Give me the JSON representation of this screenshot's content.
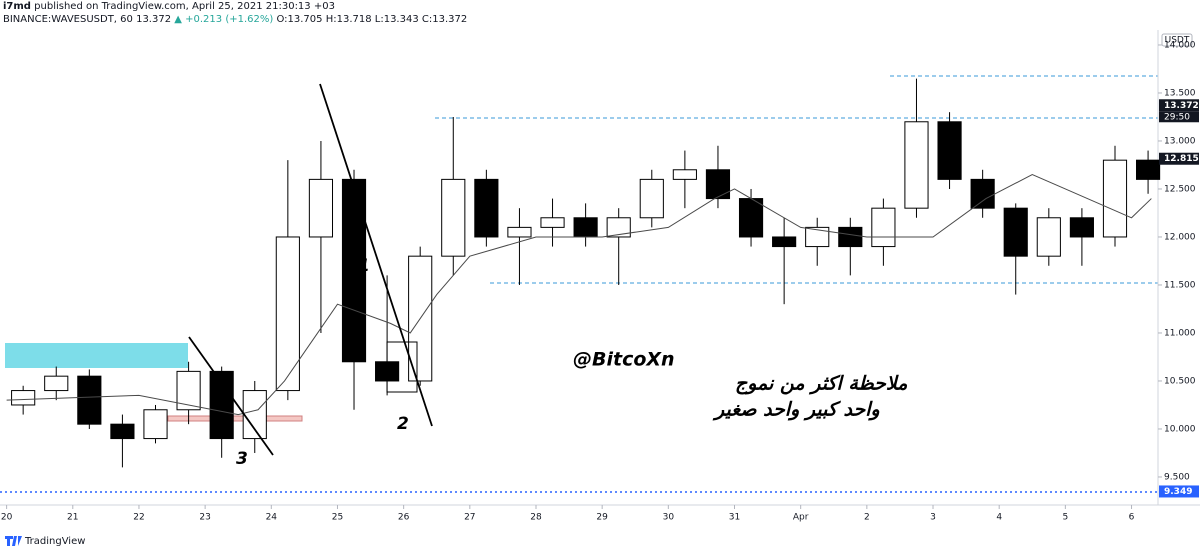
{
  "header": {
    "author": "i7md",
    "published": "published on TradingView.com, April 25, 2021 21:30:13 +03",
    "symbol": "BINANCE:WAVESUSDT, 60",
    "last": "13.372",
    "change": "▲ +0.213 (+1.62%)",
    "ohlc": "O:13.705 H:13.718 L:13.343 C:13.372"
  },
  "footer": {
    "brand": "TradingView"
  },
  "chart_data": {
    "type": "candlestick",
    "currency": "USDT",
    "up_color": "#ffffff",
    "down_color": "#000000",
    "ma_color": "#4a4a4a",
    "xlim": [
      -0.1,
      17.4
    ],
    "xticks": [
      {
        "value": 0,
        "label": "20"
      },
      {
        "value": 1,
        "label": "21"
      },
      {
        "value": 2,
        "label": "22"
      },
      {
        "value": 3,
        "label": "23"
      },
      {
        "value": 4,
        "label": "24"
      },
      {
        "value": 5,
        "label": "25"
      },
      {
        "value": 6,
        "label": "26"
      },
      {
        "value": 7,
        "label": "27"
      },
      {
        "value": 8,
        "label": "28"
      },
      {
        "value": 9,
        "label": "29"
      },
      {
        "value": 10,
        "label": "30"
      },
      {
        "value": 11,
        "label": "31"
      },
      {
        "value": 12,
        "label": "Apr"
      },
      {
        "value": 13,
        "label": "2"
      },
      {
        "value": 14,
        "label": "3"
      },
      {
        "value": 15,
        "label": "4"
      },
      {
        "value": 16,
        "label": "5"
      },
      {
        "value": 17,
        "label": "6"
      }
    ],
    "ylim": [
      9.208,
      14.156
    ],
    "yticks": [
      {
        "value": 9.5,
        "label": "9.500"
      },
      {
        "value": 10,
        "label": "10.000"
      },
      {
        "value": 10.5,
        "label": "10.500"
      },
      {
        "value": 11,
        "label": "11.000"
      },
      {
        "value": 11.5,
        "label": "11.500"
      },
      {
        "value": 12,
        "label": "12.000"
      },
      {
        "value": 12.5,
        "label": "12.500"
      },
      {
        "value": 13,
        "label": "13.000"
      },
      {
        "value": 13.5,
        "label": "13.500"
      },
      {
        "value": 14,
        "label": "14.000"
      }
    ],
    "x": [
      0,
      0.5,
      1,
      1.5,
      2,
      2.5,
      3,
      3.5,
      4,
      4.5,
      5,
      5.5,
      6,
      6.5,
      7,
      7.5,
      8,
      8.5,
      9,
      9.5,
      10,
      10.5,
      11,
      11.5,
      12,
      12.5,
      13,
      13.5,
      14,
      14.5,
      15,
      15.5,
      16,
      16.5,
      17
    ],
    "open": [
      10.25,
      10.4,
      10.55,
      10.05,
      9.9,
      10.2,
      10.6,
      9.9,
      10.4,
      12.0,
      12.6,
      10.7,
      10.5,
      11.8,
      12.6,
      12.0,
      12.1,
      12.2,
      12.0,
      12.2,
      12.6,
      12.7,
      12.4,
      12.0,
      11.9,
      12.1,
      11.9,
      12.3,
      13.2,
      12.6,
      12.3,
      11.8,
      12.2,
      12.0,
      12.8
    ],
    "high": [
      10.45,
      10.65,
      10.62,
      10.15,
      10.25,
      10.7,
      10.65,
      10.5,
      12.8,
      13.0,
      12.7,
      11.6,
      11.9,
      13.25,
      12.7,
      12.3,
      12.4,
      12.35,
      12.3,
      12.7,
      12.9,
      12.95,
      12.5,
      12.2,
      12.2,
      12.2,
      12.4,
      13.65,
      13.3,
      12.7,
      12.35,
      12.3,
      12.3,
      12.95,
      12.9
    ],
    "low": [
      10.15,
      10.3,
      10.0,
      9.6,
      9.85,
      10.05,
      9.7,
      9.75,
      10.3,
      11.0,
      10.2,
      10.35,
      10.45,
      11.6,
      11.9,
      11.5,
      11.9,
      11.9,
      11.5,
      12.1,
      12.3,
      12.3,
      11.9,
      11.3,
      11.7,
      11.6,
      11.7,
      12.2,
      12.5,
      12.2,
      11.4,
      11.7,
      11.7,
      11.9,
      12.45
    ],
    "close": [
      10.4,
      10.55,
      10.05,
      9.9,
      10.2,
      10.6,
      9.9,
      10.4,
      12.0,
      12.6,
      10.7,
      10.5,
      11.8,
      12.6,
      12.0,
      12.1,
      12.2,
      12.0,
      12.2,
      12.6,
      12.7,
      12.4,
      12.0,
      11.9,
      12.1,
      11.9,
      12.3,
      13.2,
      12.6,
      12.3,
      11.8,
      12.2,
      12.0,
      12.8,
      12.6
    ],
    "ma": {
      "x": [
        0,
        2,
        3.5,
        3.8,
        4.2,
        4.6,
        5,
        5.8,
        6.1,
        6.5,
        7,
        8,
        9,
        10,
        10.7,
        11,
        12,
        13,
        14,
        14.8,
        15.5,
        16,
        17,
        17.3
      ],
      "values": [
        10.3,
        10.35,
        10.15,
        10.2,
        10.5,
        10.9,
        11.3,
        11.1,
        11.0,
        11.4,
        11.8,
        12.0,
        12.0,
        12.1,
        12.4,
        12.5,
        12.1,
        12.0,
        12.0,
        12.4,
        12.65,
        12.5,
        12.2,
        12.4
      ]
    },
    "price_labels": [
      {
        "value": 13.372,
        "label": "13.372",
        "color": "#131722"
      },
      {
        "value": 12.815,
        "label": "12.815",
        "color": "#131722"
      },
      {
        "value": 9.349,
        "label": "9.349",
        "color": "#2962ff"
      }
    ],
    "countdown": "29:50",
    "annotations": {
      "handle": "@BitcoXn",
      "note_line1": "ملاحظة اكثر من نموج",
      "note_line2": "واحد كبير واحد صغير",
      "wave1": "1",
      "wave2": "2",
      "wave3": "3"
    }
  }
}
